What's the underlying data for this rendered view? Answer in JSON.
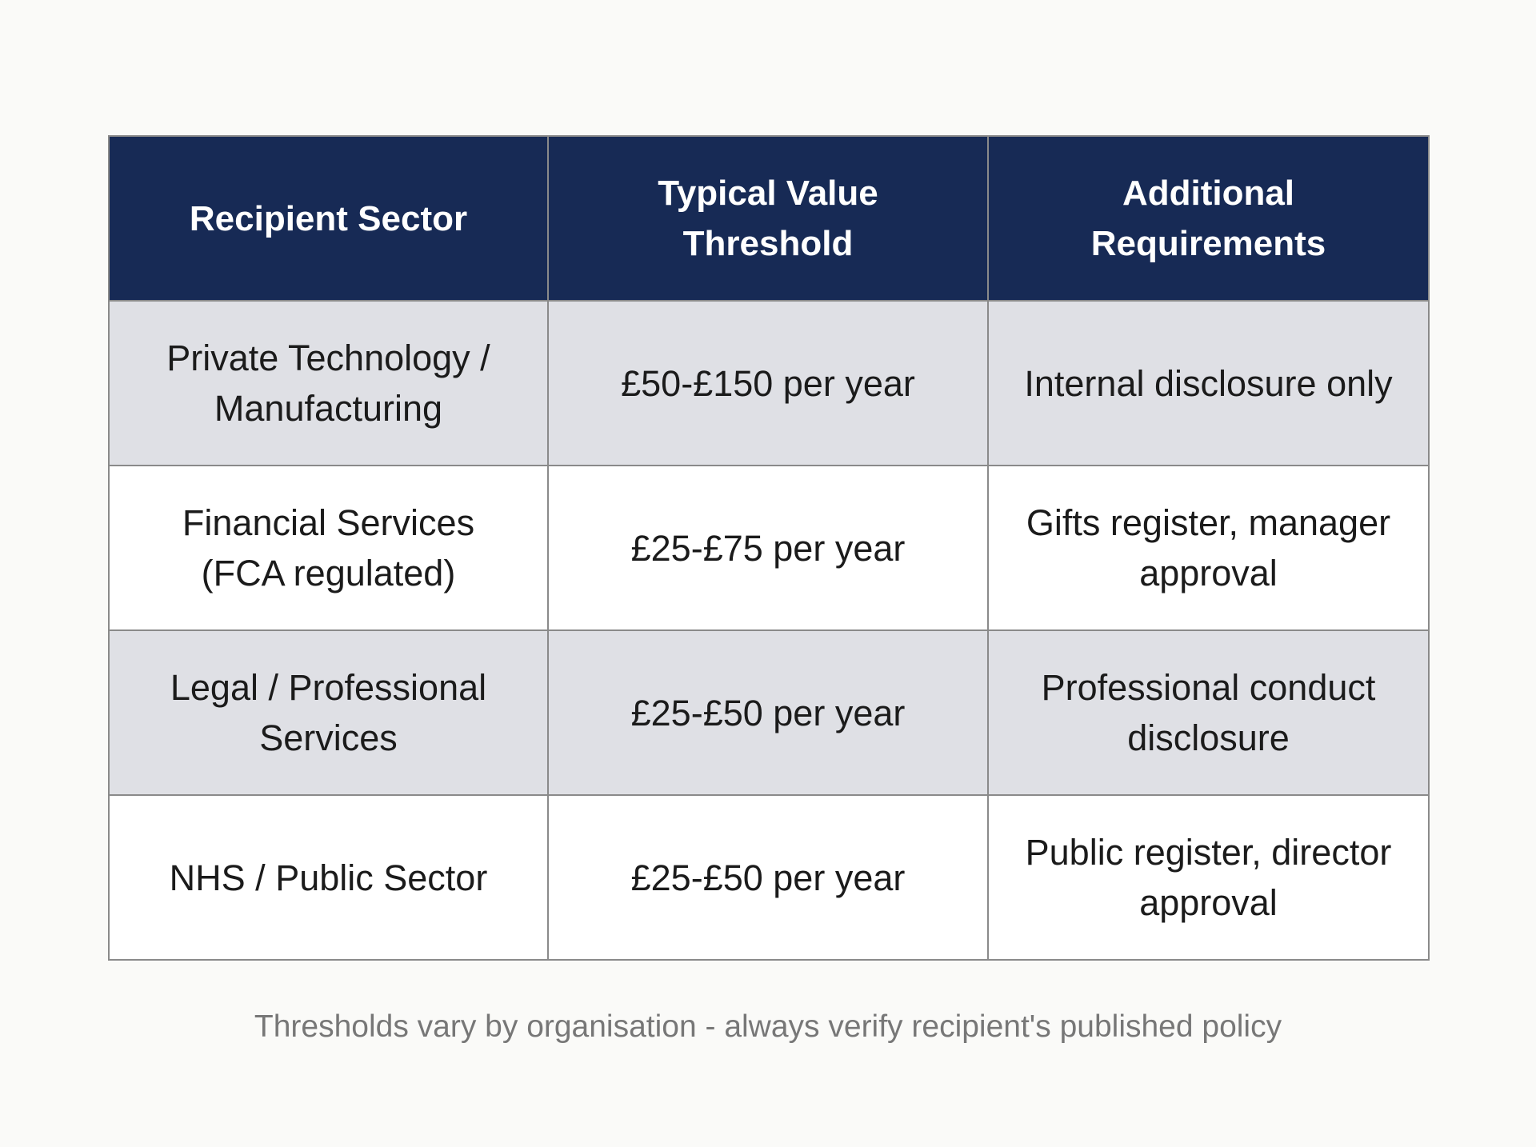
{
  "table": {
    "headers": [
      "Recipient Sector",
      "Typical Value Threshold",
      "Additional Requirements"
    ],
    "rows": [
      [
        "Private Technology / Manufacturing",
        "£50-£150 per year",
        "Internal disclosure only"
      ],
      [
        "Financial Services (FCA regulated)",
        "£25-£75 per year",
        "Gifts register, manager approval"
      ],
      [
        "Legal / Professional Services",
        "£25-£50 per year",
        "Professional conduct disclosure"
      ],
      [
        "NHS / Public Sector",
        "£25-£50 per year",
        "Public register, director approval"
      ]
    ]
  },
  "footnote": "Thresholds vary by organisation - always verify recipient's published policy",
  "colors": {
    "header_bg": "#172a55",
    "stripe_bg": "#dfe0e5",
    "border": "#8a8a8a"
  }
}
